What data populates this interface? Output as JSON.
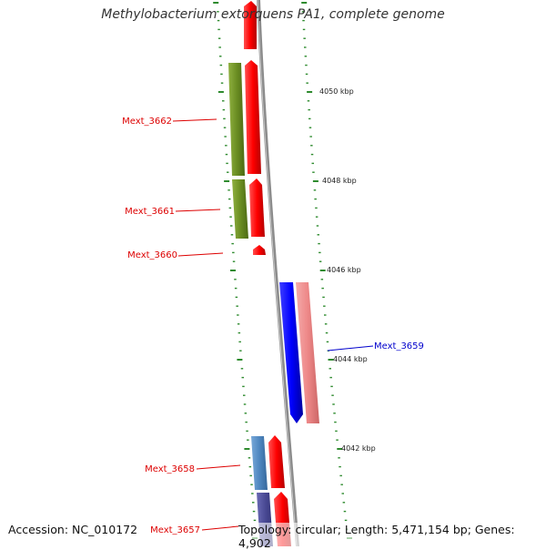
{
  "title": "Methylobacterium extorquens PA1, complete genome",
  "footer": {
    "accession": "Accession: NC_010172",
    "summary": "Topology: circular; Length: 5,471,154 bp; Genes: 4,902"
  },
  "scale_labels": [
    "4050 kbp",
    "4048 kbp",
    "4046 kbp",
    "4044 kbp",
    "4042 kbp"
  ],
  "genes": [
    {
      "name": "Mext_3662",
      "color": "#dd0000"
    },
    {
      "name": "Mext_3661",
      "color": "#dd0000"
    },
    {
      "name": "Mext_3660",
      "color": "#dd0000"
    },
    {
      "name": "Mext_3659",
      "color": "#0000cc"
    },
    {
      "name": "Mext_3658",
      "color": "#dd0000"
    },
    {
      "name": "Mext_3657",
      "color": "#dd0000"
    }
  ],
  "colors": {
    "forward_cds": "#ff0000",
    "reverse_cds": "#0000ff",
    "reverse_rna": "#ee8888",
    "cog_olive": "#6b8e23",
    "cog_steel": "#4f87c0",
    "cog_slate": "#4b4b96",
    "backbone": "#8c8c8c",
    "tick": "#2e8b2e"
  }
}
